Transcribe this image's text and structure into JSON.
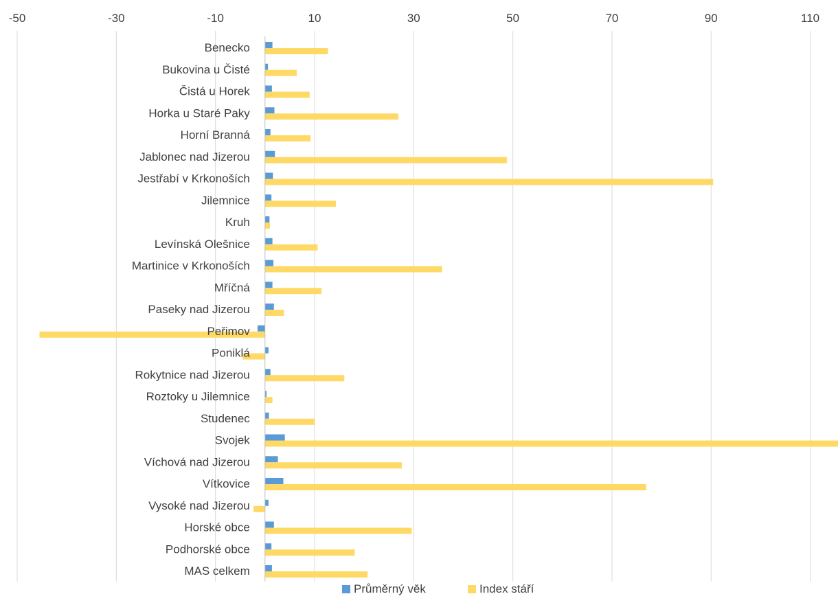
{
  "chart_data": {
    "type": "bar",
    "orientation": "horizontal",
    "categories": [
      "Benecko",
      "Bukovina u Čisté",
      "Čistá u Horek",
      "Horka u Staré Paky",
      "Horní Branná",
      "Jablonec nad Jizerou",
      "Jestřabí v Krkonoších",
      "Jilemnice",
      "Kruh",
      "Levínská Olešnice",
      "Martinice v Krkonoších",
      "Mříčná",
      "Paseky nad Jizerou",
      "Peřimov",
      "Poniklá",
      "Rokytnice nad Jizerou",
      "Roztoky u Jilemnice",
      "Studenec",
      "Svojek",
      "Víchová nad Jizerou",
      "Vítkovice",
      "Vysoké nad Jizerou",
      "Horské obce",
      "Podhorské obce",
      "MAS celkem"
    ],
    "series": [
      {
        "name": "Průměrný věk",
        "color": "#5b9bd5",
        "values": [
          1.5,
          0.6,
          1.4,
          1.9,
          1.1,
          2.0,
          1.6,
          1.3,
          0.9,
          1.5,
          1.7,
          1.5,
          1.8,
          -1.5,
          0.7,
          1.1,
          0.3,
          0.8,
          4.0,
          2.6,
          3.7,
          0.7,
          1.8,
          1.3,
          1.4
        ]
      },
      {
        "name": "Index stáří",
        "color": "#ffd966",
        "values": [
          12.7,
          6.4,
          9.0,
          26.9,
          9.2,
          48.8,
          90.4,
          14.3,
          1.0,
          10.6,
          35.7,
          11.4,
          3.8,
          -45.5,
          -4.5,
          16.0,
          1.5,
          10.0,
          115.6,
          27.6,
          76.9,
          -2.3,
          29.6,
          18.1,
          20.7
        ]
      }
    ],
    "xlim": [
      -50,
      115.6
    ],
    "xticks": [
      "-50",
      "-30",
      "-10",
      "10",
      "30",
      "50",
      "70",
      "90",
      "110"
    ],
    "xtick_values": [
      -50,
      -30,
      -10,
      10,
      30,
      50,
      70,
      90,
      110
    ],
    "grid": true,
    "legend_position": "bottom"
  }
}
